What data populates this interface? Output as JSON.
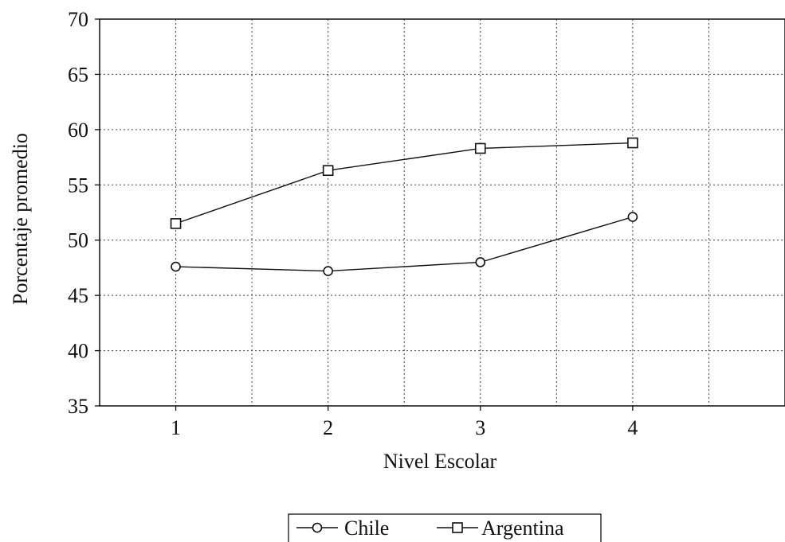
{
  "chart_data": {
    "type": "line",
    "x": [
      1,
      2,
      3,
      4
    ],
    "x_ticks": [
      "1",
      "2",
      "3",
      "4"
    ],
    "xlim": [
      0.5,
      5.0
    ],
    "ylim": [
      35,
      70
    ],
    "y_ticks": [
      35,
      40,
      45,
      50,
      55,
      60,
      65,
      70
    ],
    "xlabel": "Nivel Escolar",
    "ylabel": "Porcentaje promedio",
    "grid": true,
    "legend_position": "bottom-center",
    "series": [
      {
        "name": "Chile",
        "marker": "circle",
        "color": "#111111",
        "values": [
          47.6,
          47.2,
          48.0,
          52.1
        ]
      },
      {
        "name": "Argentina",
        "marker": "square",
        "color": "#111111",
        "values": [
          51.5,
          56.3,
          58.3,
          58.8
        ]
      }
    ]
  }
}
